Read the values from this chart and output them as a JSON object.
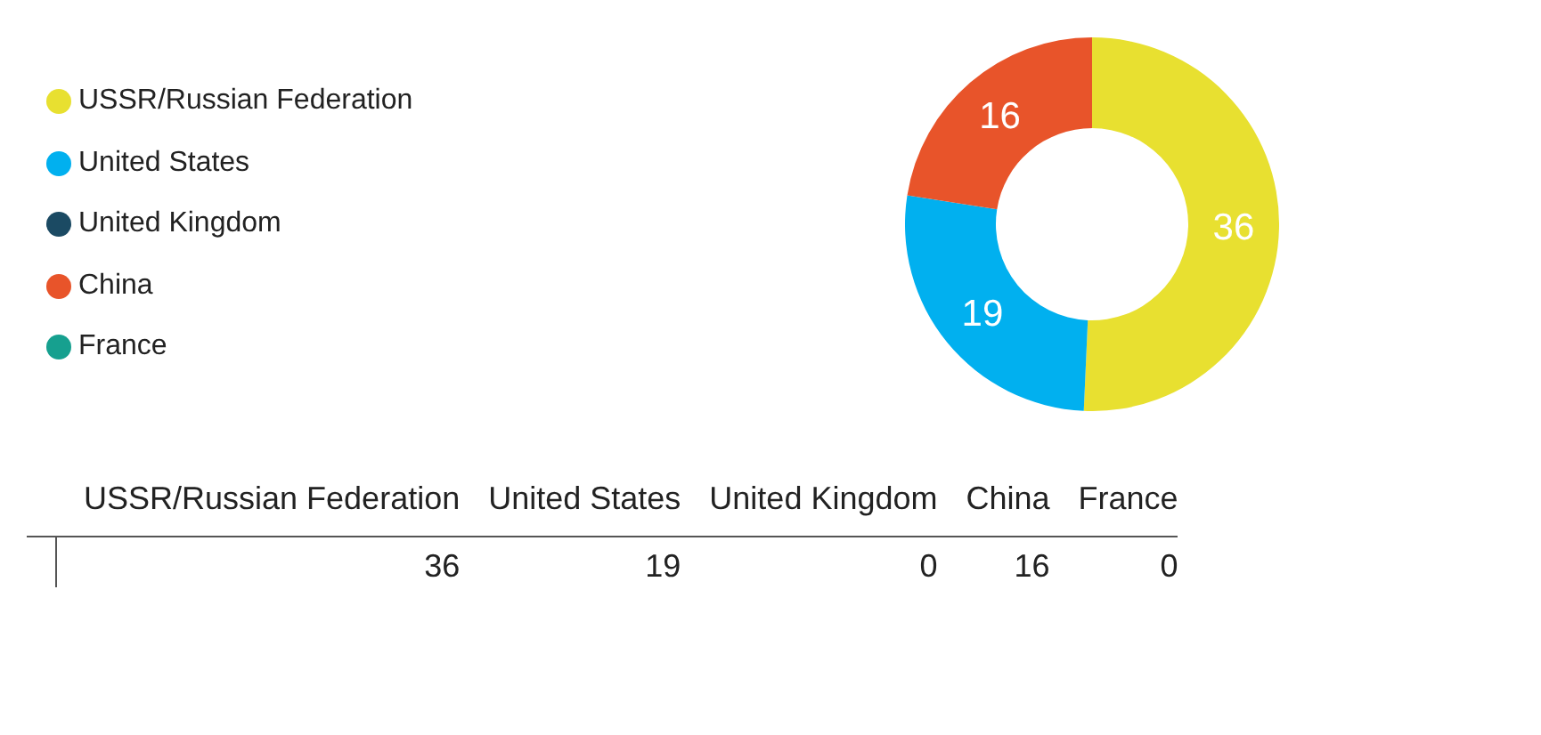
{
  "chart_data": [
    {
      "type": "donut",
      "categories": [
        "USSR/Russian Federation",
        "United States",
        "United Kingdom",
        "China",
        "France"
      ],
      "values": [
        36,
        19,
        0,
        16,
        0
      ],
      "colors": [
        "#e8e030",
        "#01b0ef",
        "#1b4a63",
        "#e8542a",
        "#16a08f"
      ],
      "legend": "left",
      "data_labels": true
    },
    {
      "type": "other",
      "categories": [
        "USSR/Russian Federation",
        "United States",
        "United Kingdom",
        "China",
        "France"
      ],
      "values": [
        36,
        19,
        0,
        16,
        0
      ],
      "data_labels": true
    }
  ]
}
